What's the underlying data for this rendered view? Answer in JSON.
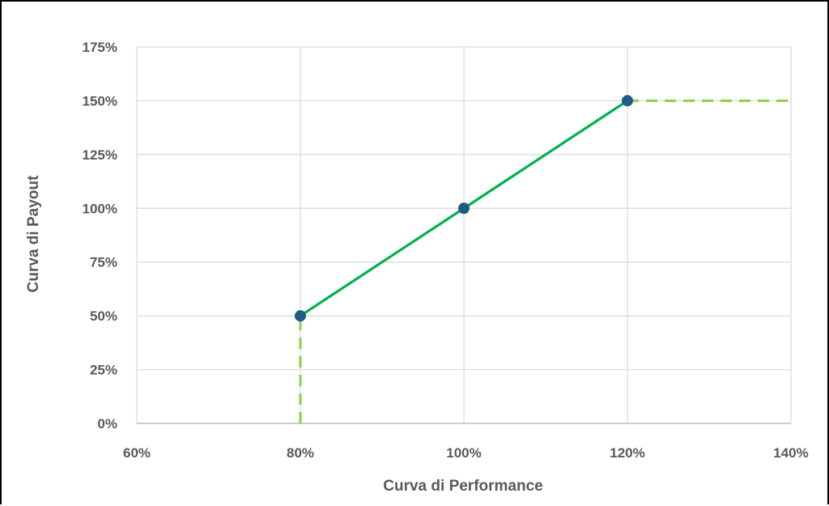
{
  "chart_data": {
    "type": "line",
    "xlabel": "Curva di Performance",
    "ylabel": "Curva di Payout",
    "xlim": [
      60,
      140
    ],
    "ylim": [
      0,
      175
    ],
    "x_ticks": [
      "60%",
      "80%",
      "100%",
      "120%",
      "140%"
    ],
    "y_ticks": [
      "0%",
      "25%",
      "50%",
      "75%",
      "100%",
      "125%",
      "150%",
      "175%"
    ],
    "grid": true,
    "legend": "none",
    "series": [
      {
        "style": "solid",
        "color": "#00b050",
        "marker_color": "#1f5c85",
        "points": [
          {
            "x": 80,
            "y": 50
          },
          {
            "x": 100,
            "y": 100
          },
          {
            "x": 120,
            "y": 150
          }
        ]
      },
      {
        "style": "dashed",
        "color": "#92d050",
        "points": [
          {
            "x": 80,
            "y": 0
          },
          {
            "x": 80,
            "y": 50
          }
        ]
      },
      {
        "style": "dashed",
        "color": "#92d050",
        "points": [
          {
            "x": 120,
            "y": 150
          },
          {
            "x": 140,
            "y": 150
          }
        ]
      }
    ]
  }
}
